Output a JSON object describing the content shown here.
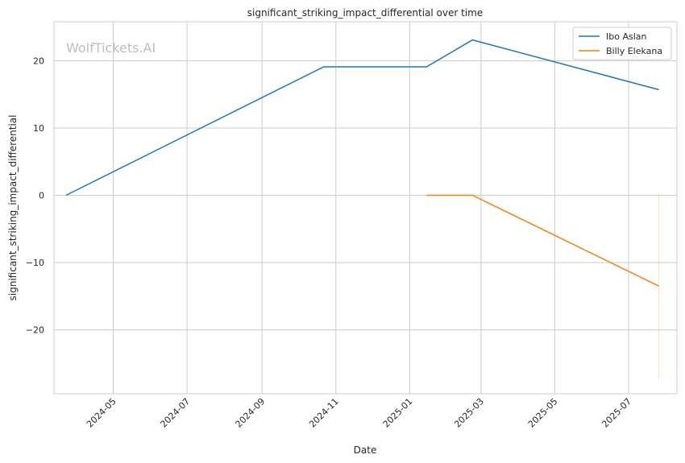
{
  "chart_data": {
    "type": "line",
    "title": "significant_striking_impact_differential over time",
    "xlabel": "Date",
    "ylabel": "significant_striking_impact_differential",
    "watermark": "WolfTickets.AI",
    "x_ticks": [
      "2024-05",
      "2024-07",
      "2024-09",
      "2024-11",
      "2025-01",
      "2025-03",
      "2025-05",
      "2025-07"
    ],
    "y_ticks": [
      20,
      10,
      0,
      -10,
      -20
    ],
    "y_tick_labels": [
      "20",
      "10",
      "0",
      "−10",
      "−20"
    ],
    "xlim": [
      "2024-03-13",
      "2025-08-10"
    ],
    "ylim": [
      -29.5,
      25.8
    ],
    "grid": true,
    "legend_position": "top-right",
    "series": [
      {
        "name": "Ibo Aslan",
        "color": "#1f77b4",
        "points": [
          {
            "x": "2024-03-23",
            "y": 0
          },
          {
            "x": "2024-10-22",
            "y": 19.1
          },
          {
            "x": "2025-01-15",
            "y": 19.1
          },
          {
            "x": "2025-02-22",
            "y": 23.1
          },
          {
            "x": "2025-07-26",
            "y": 15.7
          }
        ]
      },
      {
        "name": "Billy Elekana",
        "color": "#ff7f0e",
        "points": [
          {
            "x": "2025-01-15",
            "y": 0
          },
          {
            "x": "2025-02-22",
            "y": 0
          },
          {
            "x": "2025-07-26",
            "y": -13.5
          }
        ]
      }
    ],
    "spike": {
      "x": "2025-07-26",
      "y_top": 0.2,
      "y_bottom": -27.2,
      "color": "#ff7f0e"
    }
  }
}
